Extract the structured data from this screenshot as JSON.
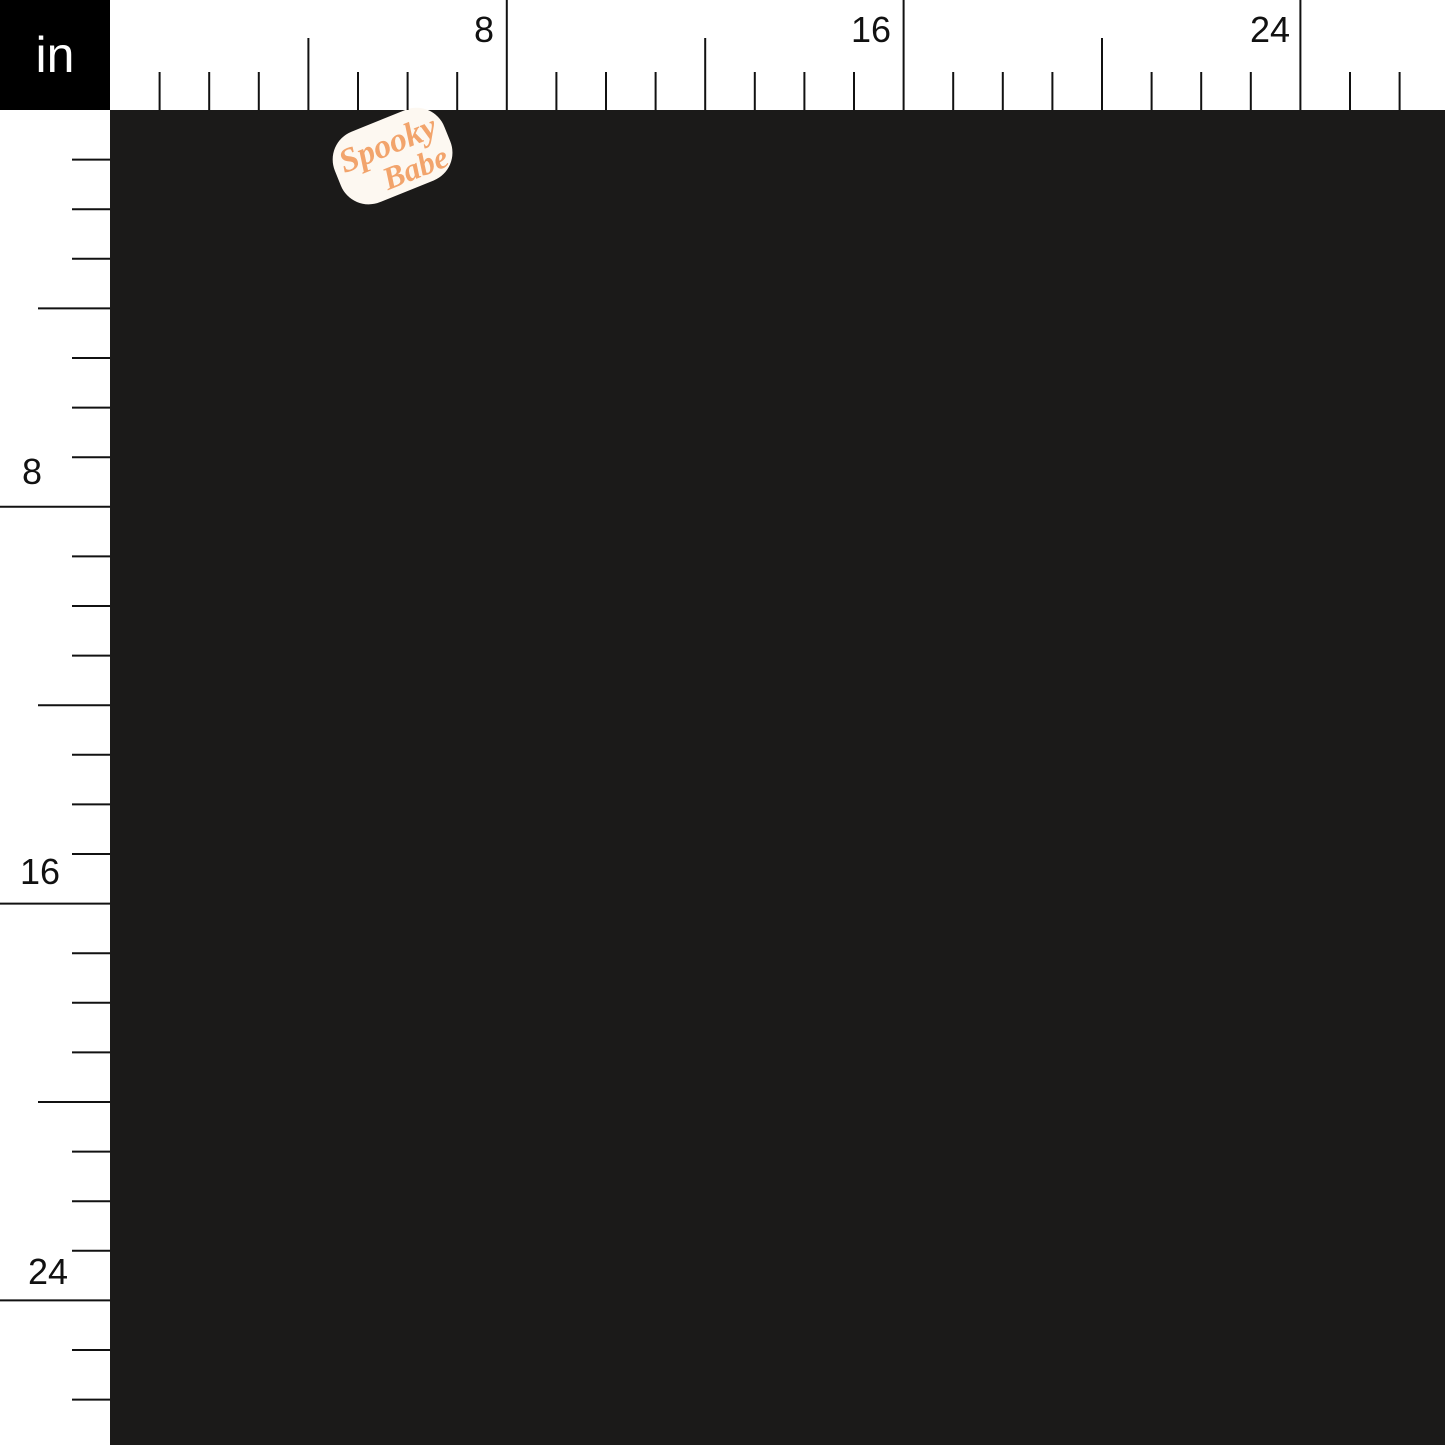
{
  "ruler": {
    "unit": "in",
    "top_labels": [
      "8",
      "16",
      "24"
    ],
    "left_labels": [
      "8",
      "16",
      "24"
    ]
  },
  "pattern": {
    "motif_text_line1": "Spooky",
    "motif_text_line2": "Babe",
    "icons": [
      "ghost-icon",
      "daisy-icon",
      "smiley-flower-icon",
      "star-icon",
      "checkered-scarf"
    ],
    "colors": {
      "background": "#1b1a19",
      "ghost": "#fdf8f1",
      "orange": "#f2a46c",
      "lavender": "#c8b6e6",
      "mint": "#9fd3bf",
      "pink": "#f3a6a0",
      "daisy_center": "#f3c35a"
    }
  }
}
